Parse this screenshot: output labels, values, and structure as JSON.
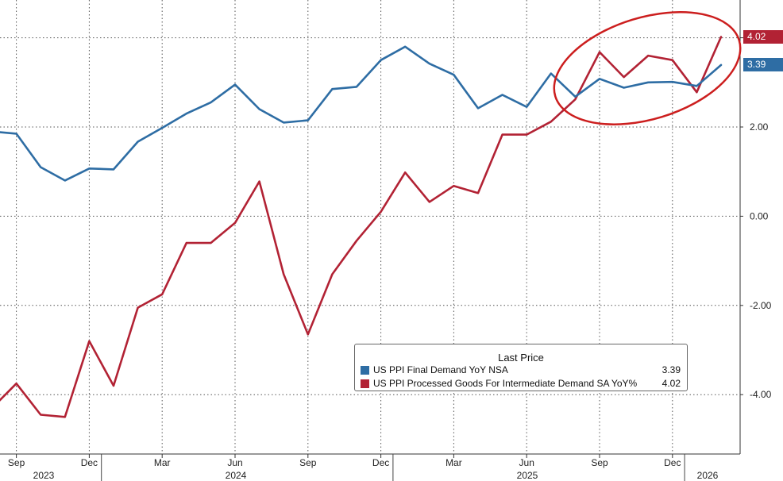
{
  "chart_data": {
    "type": "line",
    "x": [
      "2023-08",
      "2023-09",
      "2023-10",
      "2023-11",
      "2023-12",
      "2024-01",
      "2024-02",
      "2024-03",
      "2024-04",
      "2024-05",
      "2024-06",
      "2024-07",
      "2024-08",
      "2024-09",
      "2024-10",
      "2024-11",
      "2024-12",
      "2025-01",
      "2025-02",
      "2025-03",
      "2025-04",
      "2025-05",
      "2025-06",
      "2025-07",
      "2025-08",
      "2025-09",
      "2025-10",
      "2025-11",
      "2025-12",
      "2026-01",
      "2026-02"
    ],
    "series": [
      {
        "name": "US PPI Final Demand YoY NSA",
        "color": "#2e6da4",
        "values": [
          1.9,
          1.85,
          1.1,
          0.8,
          1.07,
          1.05,
          1.67,
          1.98,
          2.3,
          2.55,
          2.95,
          2.4,
          2.1,
          2.15,
          2.85,
          2.9,
          3.5,
          3.8,
          3.42,
          3.17,
          2.42,
          2.72,
          2.45,
          3.2,
          2.68,
          3.08,
          2.88,
          3.0,
          3.01,
          2.92,
          3.39
        ]
      },
      {
        "name": "US PPI Processed Goods For Intermediate Demand SA YoY%",
        "color": "#b22234",
        "values": [
          -4.3,
          -3.75,
          -4.45,
          -4.5,
          -2.8,
          -3.8,
          -2.05,
          -1.75,
          -0.6,
          -0.6,
          -0.15,
          0.78,
          -1.3,
          -2.65,
          -1.3,
          -0.55,
          0.1,
          0.98,
          0.32,
          0.68,
          0.52,
          1.83,
          1.83,
          2.12,
          2.62,
          3.68,
          3.12,
          3.6,
          3.5,
          2.78,
          4.02
        ]
      }
    ],
    "ylim": [
      -5.2,
      4.9
    ],
    "yticks": [
      "4.00",
      "2.00",
      "0.00",
      "-2.00",
      "-4.00"
    ],
    "ytick_values": [
      4,
      2,
      0,
      -2,
      -4
    ],
    "month_ticks": [
      "Sep",
      "Dec",
      "Mar",
      "Jun",
      "Sep",
      "Dec",
      "Mar",
      "Jun",
      "Sep",
      "Dec"
    ],
    "month_tick_x": [
      "2023-09",
      "2023-12",
      "2024-03",
      "2024-06",
      "2024-09",
      "2024-12",
      "2025-03",
      "2025-06",
      "2025-09",
      "2025-12"
    ],
    "year_labels": [
      "2023",
      "2024",
      "2025",
      "2026"
    ],
    "grid": true,
    "y_axis_side": "right",
    "legend": {
      "title": "Last Price",
      "position": "bottom-right",
      "entries": [
        {
          "name": "US PPI Final Demand YoY NSA",
          "value": "3.39"
        },
        {
          "name": "US PPI Processed Goods For Intermediate Demand SA YoY%",
          "value": "4.02"
        }
      ]
    },
    "last_value_tags": [
      "3.39",
      "4.02"
    ],
    "annotation": {
      "type": "ellipse",
      "color": "#cc1e1e",
      "highlights": "2025-07 to 2026-02"
    }
  }
}
